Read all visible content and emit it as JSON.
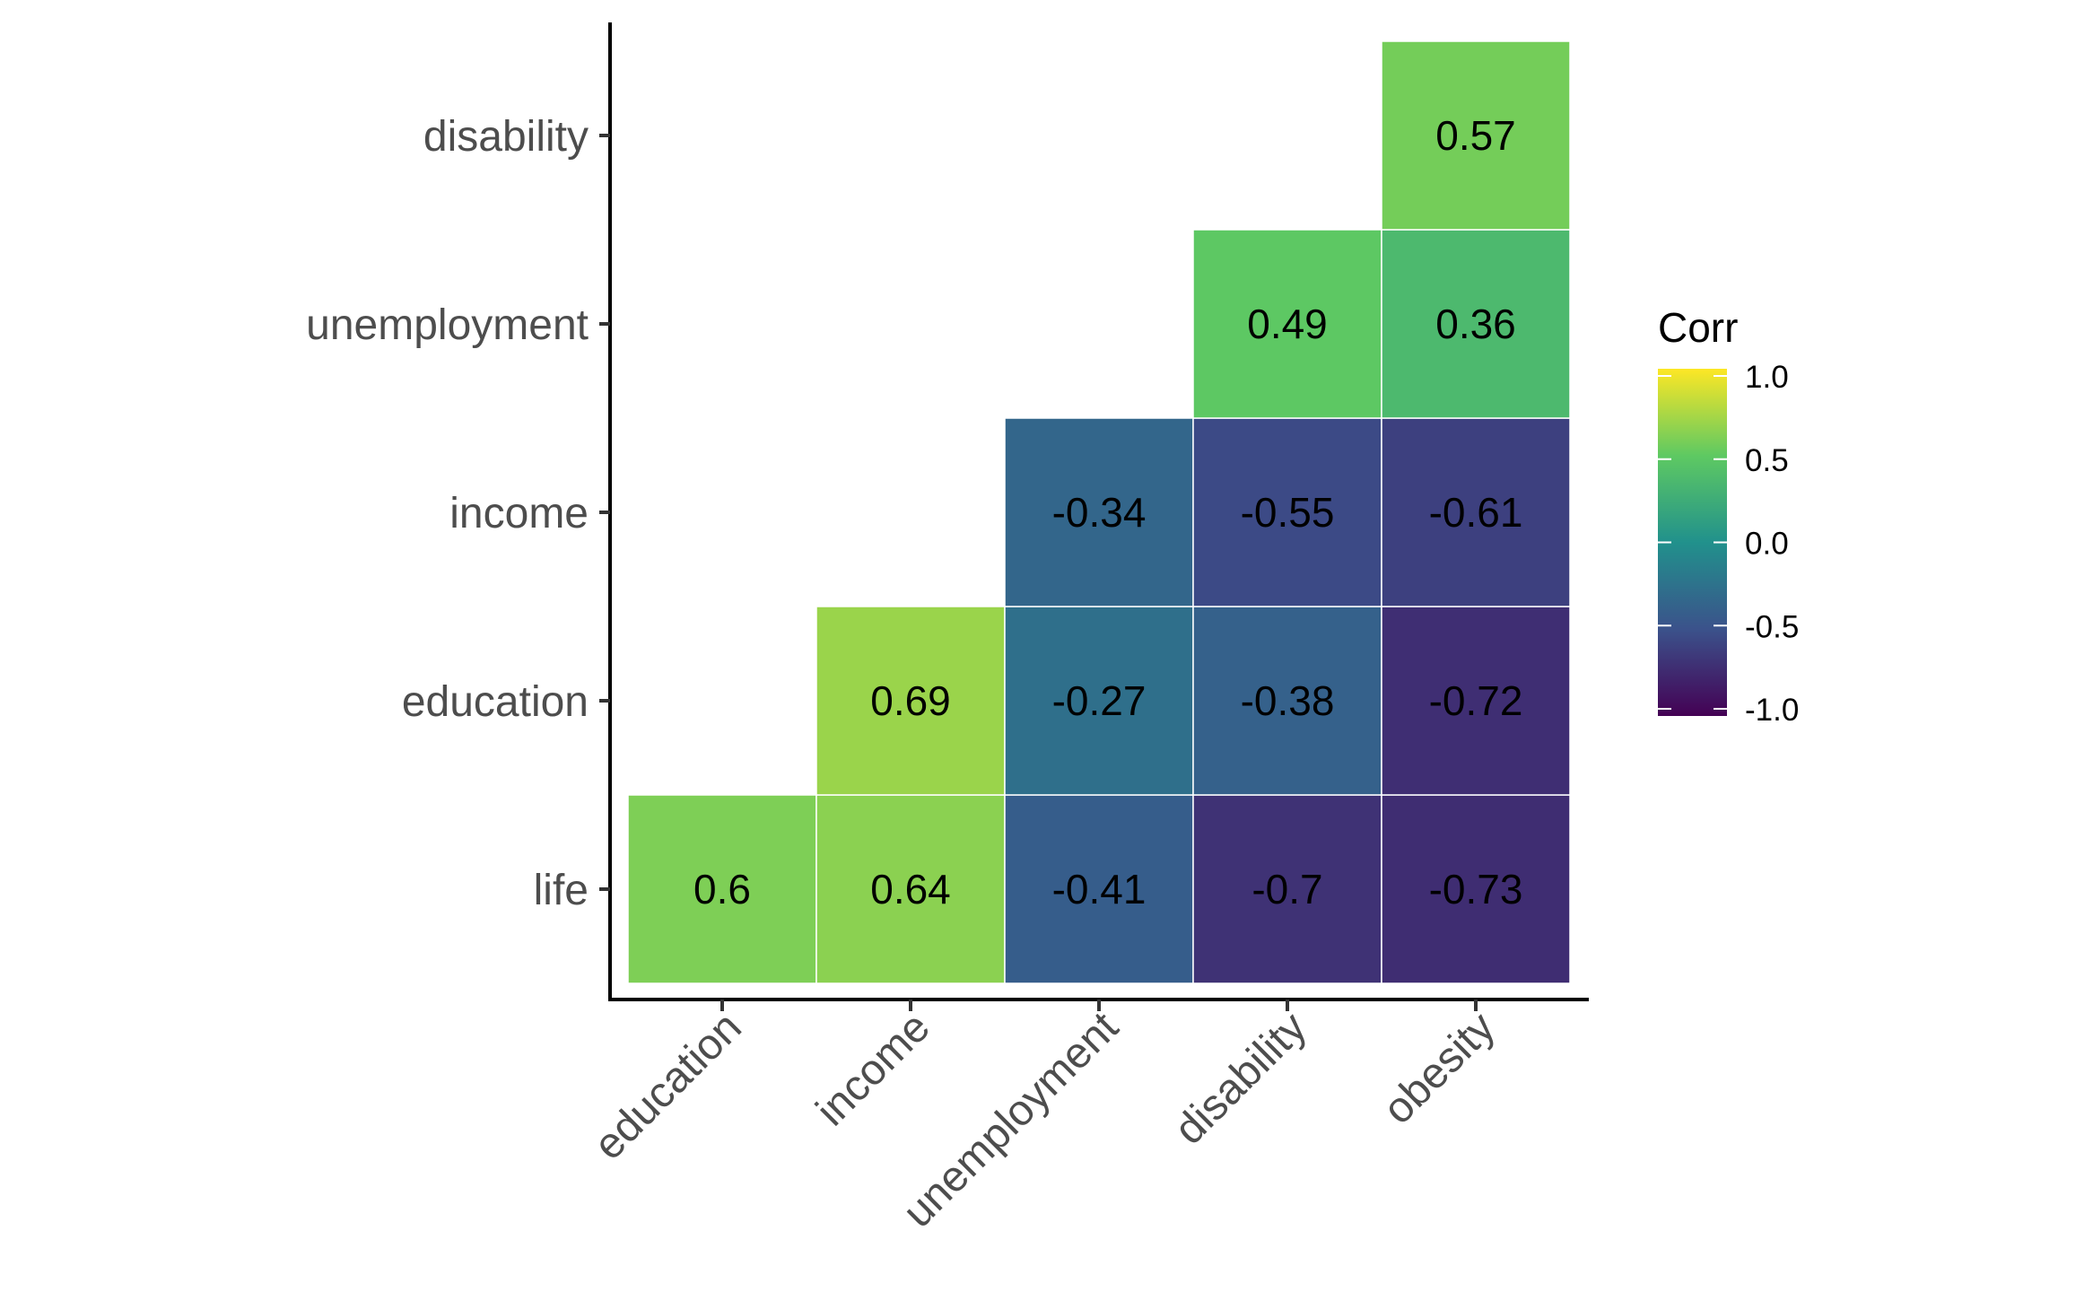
{
  "chart_data": {
    "type": "heatmap",
    "title": "",
    "xlabel": "",
    "ylabel": "",
    "x_categories": [
      "education",
      "income",
      "unemployment",
      "disability",
      "obesity"
    ],
    "y_categories": [
      "life",
      "education",
      "income",
      "unemployment",
      "disability"
    ],
    "cells": [
      {
        "x": "education",
        "y": "life",
        "value": 0.6,
        "label": "0.6"
      },
      {
        "x": "income",
        "y": "life",
        "value": 0.64,
        "label": "0.64"
      },
      {
        "x": "unemployment",
        "y": "life",
        "value": -0.41,
        "label": "-0.41"
      },
      {
        "x": "disability",
        "y": "life",
        "value": -0.7,
        "label": "-0.7"
      },
      {
        "x": "obesity",
        "y": "life",
        "value": -0.73,
        "label": "-0.73"
      },
      {
        "x": "income",
        "y": "education",
        "value": 0.69,
        "label": "0.69"
      },
      {
        "x": "unemployment",
        "y": "education",
        "value": -0.27,
        "label": "-0.27"
      },
      {
        "x": "disability",
        "y": "education",
        "value": -0.38,
        "label": "-0.38"
      },
      {
        "x": "obesity",
        "y": "education",
        "value": -0.72,
        "label": "-0.72"
      },
      {
        "x": "unemployment",
        "y": "income",
        "value": -0.34,
        "label": "-0.34"
      },
      {
        "x": "disability",
        "y": "income",
        "value": -0.55,
        "label": "-0.55"
      },
      {
        "x": "obesity",
        "y": "income",
        "value": -0.61,
        "label": "-0.61"
      },
      {
        "x": "disability",
        "y": "unemployment",
        "value": 0.49,
        "label": "0.49"
      },
      {
        "x": "obesity",
        "y": "unemployment",
        "value": 0.36,
        "label": "0.36"
      },
      {
        "x": "obesity",
        "y": "disability",
        "value": 0.57,
        "label": "0.57"
      }
    ],
    "color_scale": {
      "name": "viridis",
      "limits": [
        -1,
        1
      ],
      "stops": [
        "#440154",
        "#3b528b",
        "#21918c",
        "#5ec962",
        "#fde725"
      ]
    },
    "legend": {
      "title": "Corr",
      "position": "right",
      "tick_labels": [
        "1.0",
        "0.5",
        "0.0",
        "-0.5",
        "-1.0"
      ],
      "tick_values": [
        1.0,
        0.5,
        0.0,
        -0.5,
        -1.0
      ]
    },
    "grid": false
  }
}
